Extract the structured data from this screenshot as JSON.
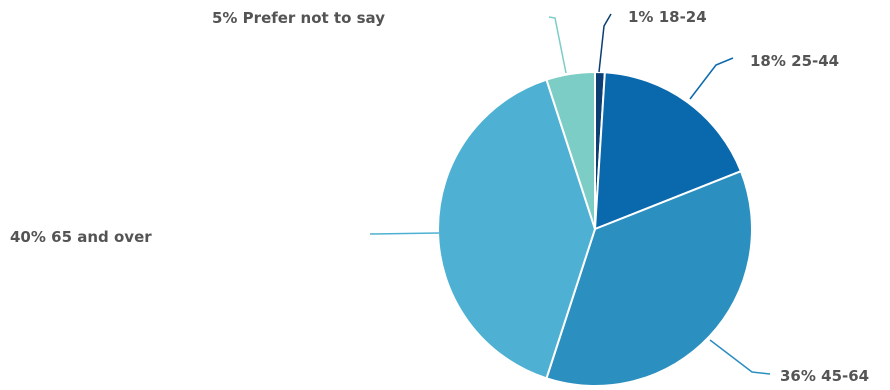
{
  "chart_data": {
    "type": "pie",
    "title": "",
    "start": "top",
    "direction": "clockwise",
    "slices": [
      {
        "category": "18-24",
        "value": 1,
        "value_label": "1%",
        "color": "#0b3f73"
      },
      {
        "category": "25-44",
        "value": 18,
        "value_label": "18%",
        "color": "#0a69ad"
      },
      {
        "category": "45-64",
        "value": 36,
        "value_label": "36%",
        "color": "#2b8fc0"
      },
      {
        "category": "65 and over",
        "value": 40,
        "value_label": "40%",
        "color": "#4eb1d3"
      },
      {
        "category": "Prefer not to say",
        "value": 5,
        "value_label": "5%",
        "color": "#7ccdc6"
      }
    ],
    "legend": "none",
    "labels": "outside with leader lines"
  }
}
